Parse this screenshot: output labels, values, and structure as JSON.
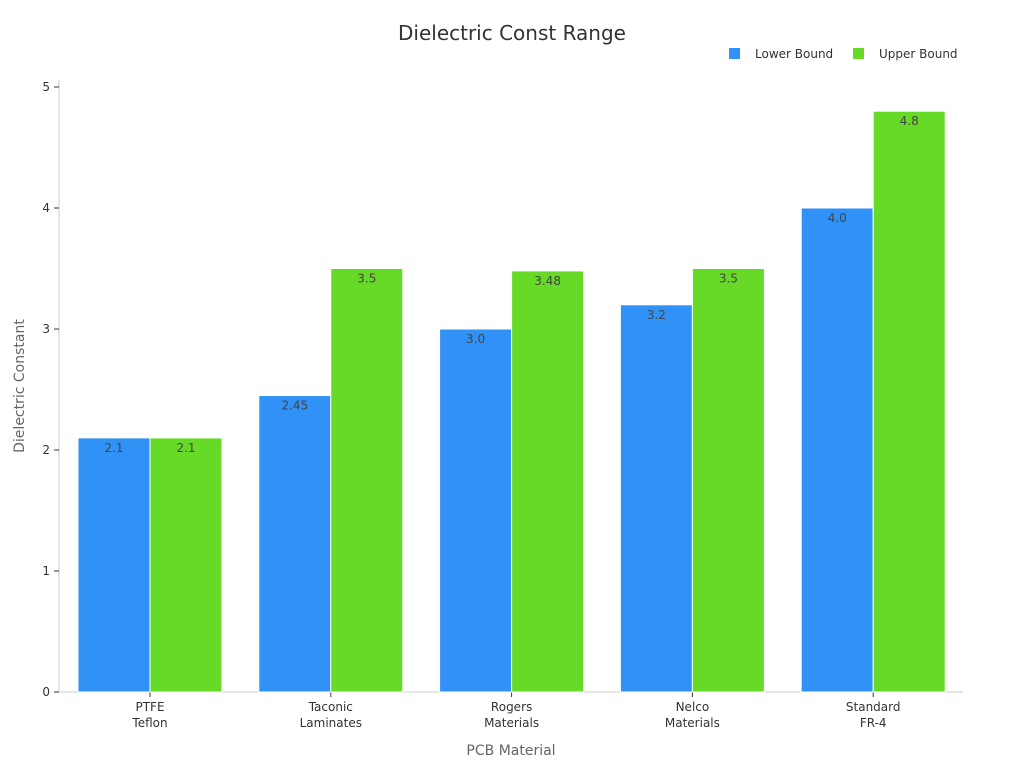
{
  "chart_data": {
    "type": "bar",
    "title": "Dielectric Const Range",
    "xlabel": "PCB Material",
    "ylabel": "Dielectric Constant",
    "categories": [
      [
        "PTFE",
        "Teflon"
      ],
      [
        "Taconic",
        "Laminates"
      ],
      [
        "Rogers",
        "Materials"
      ],
      [
        "Nelco",
        "Materials"
      ],
      [
        "Standard",
        "FR-4"
      ]
    ],
    "series": [
      {
        "name": "Lower Bound",
        "color": "#3091F7",
        "values": [
          2.1,
          2.45,
          3.0,
          3.2,
          4.0
        ],
        "labels": [
          "2.1",
          "2.45",
          "3.0",
          "3.2",
          "4.0"
        ]
      },
      {
        "name": "Upper Bound",
        "color": "#66DA26",
        "values": [
          2.1,
          3.5,
          3.48,
          3.5,
          4.8
        ],
        "labels": [
          "2.1",
          "3.5",
          "3.48",
          "3.5",
          "4.8"
        ]
      }
    ],
    "ylim": [
      0,
      5
    ],
    "yticks": [
      0,
      1,
      2,
      3,
      4,
      5
    ],
    "grid": false,
    "legend_position": "top-right"
  }
}
